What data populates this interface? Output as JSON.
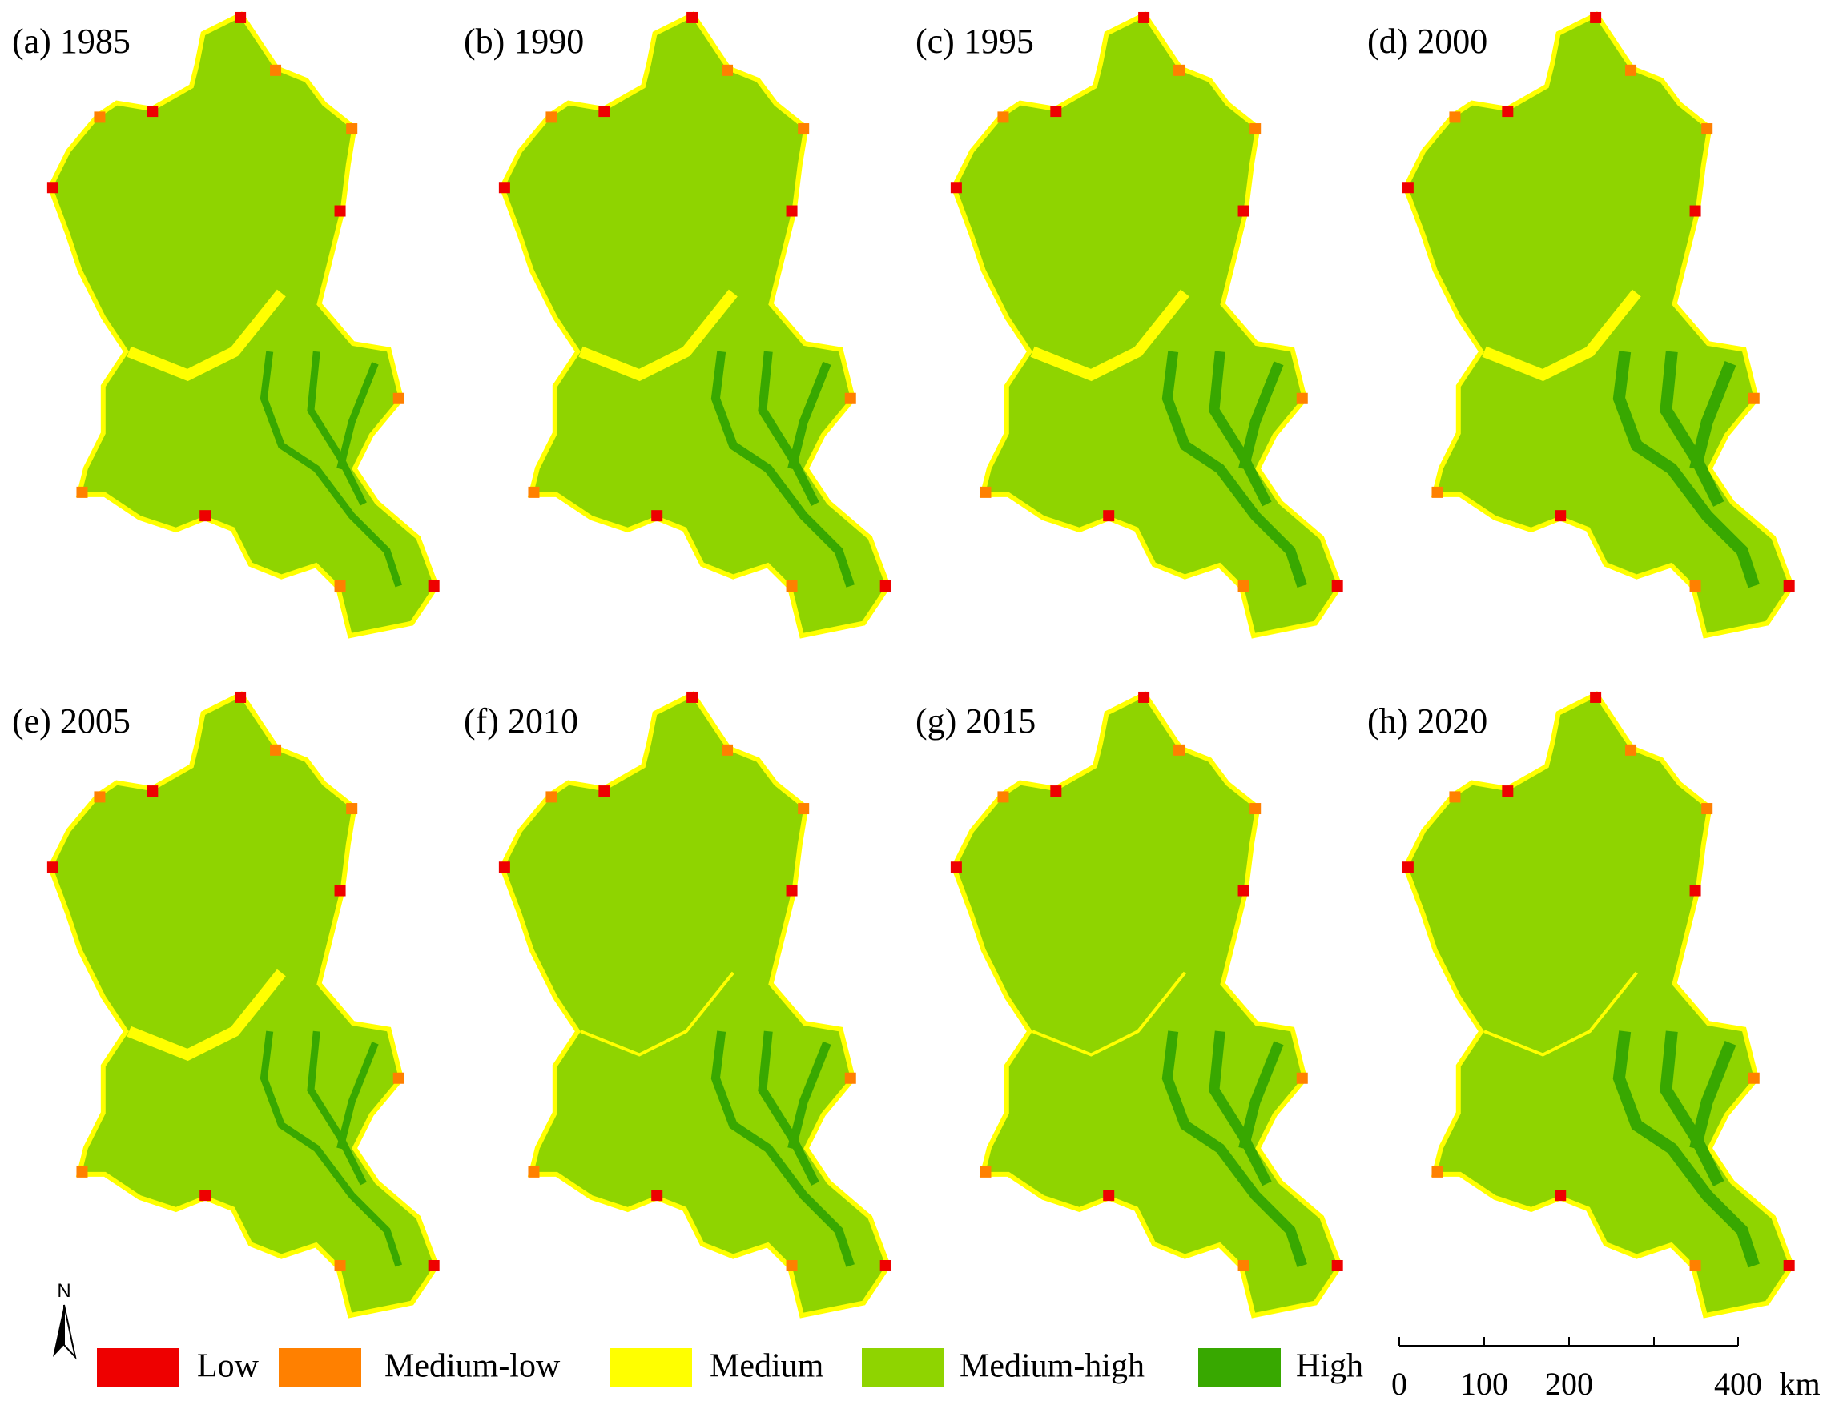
{
  "panels": [
    {
      "label": "(a) 1985"
    },
    {
      "label": "(b) 1990"
    },
    {
      "label": "(c) 1995"
    },
    {
      "label": "(d) 2000"
    },
    {
      "label": "(e) 2005"
    },
    {
      "label": "(f) 2010"
    },
    {
      "label": "(g) 2015"
    },
    {
      "label": "(h) 2020"
    }
  ],
  "legend": {
    "items": [
      {
        "name": "Low",
        "color": "#ee0000"
      },
      {
        "name": "Medium-low",
        "color": "#ff8000"
      },
      {
        "name": "Medium",
        "color": "#ffff00"
      },
      {
        "name": "Medium-high",
        "color": "#8fd400"
      },
      {
        "name": "High",
        "color": "#38a800"
      }
    ]
  },
  "north": "N",
  "scale_bar": {
    "ticks": [
      "0",
      "100",
      "200",
      "400"
    ],
    "unit": "km"
  }
}
